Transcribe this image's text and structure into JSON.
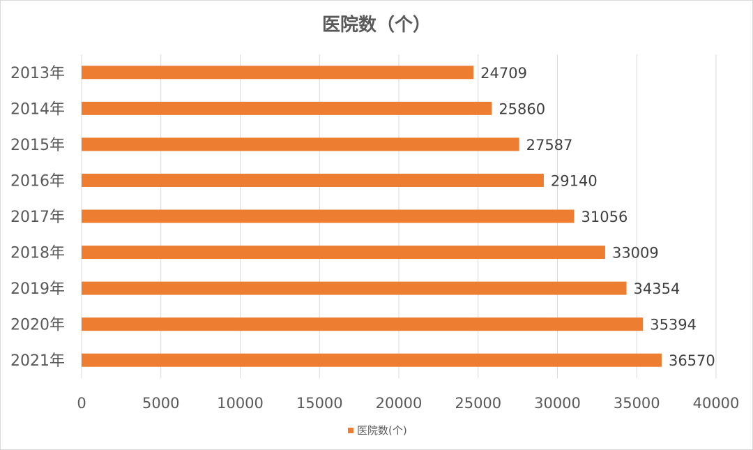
{
  "chart_data": {
    "type": "bar",
    "orientation": "horizontal",
    "title": "医院数（个）",
    "categories": [
      "2013年",
      "2014年",
      "2015年",
      "2016年",
      "2017年",
      "2018年",
      "2019年",
      "2020年",
      "2021年"
    ],
    "series": [
      {
        "name": "医院数(个)",
        "color": "#ED7D31",
        "values": [
          24709,
          25860,
          27587,
          29140,
          31056,
          33009,
          34354,
          35394,
          36570
        ]
      }
    ],
    "xlim": [
      0,
      40000
    ],
    "xticks": [
      0,
      5000,
      10000,
      15000,
      20000,
      25000,
      30000,
      35000,
      40000
    ],
    "xlabel": "",
    "ylabel": "",
    "grid": "vertical",
    "legend_position": "bottom",
    "data_labels": true
  }
}
